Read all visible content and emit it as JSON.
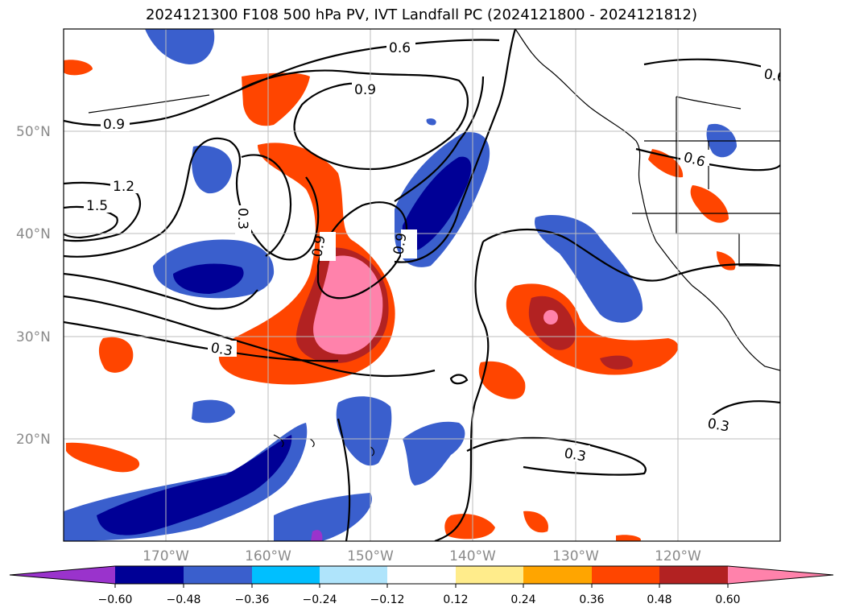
{
  "title": "2024121300 F108 500 hPa PV, IVT Landfall PC (2024121800 - 2024121812)",
  "lat_ticks": [
    "50°N",
    "40°N",
    "30°N",
    "20°N"
  ],
  "lon_ticks": [
    "170°W",
    "160°W",
    "150°W",
    "140°W",
    "130°W",
    "120°W"
  ],
  "contour_labels": [
    "0.6",
    "0.9",
    "0.9",
    "1.2",
    "1.5",
    "0.3",
    "0.9",
    "0.9",
    "0.3",
    "0.3",
    "0.3",
    "0.6",
    "0.6"
  ],
  "colorbar": {
    "colors": [
      "#9a33cc",
      "#000096",
      "#3a5fcd",
      "#00bfff",
      "#afe4fb",
      "#ffffff",
      "#ffec8b",
      "#ffa500",
      "#ff4500",
      "#b22222",
      "#ff82ab"
    ],
    "tick_labels": [
      "−0.60",
      "−0.48",
      "−0.36",
      "−0.24",
      "−0.12",
      "0.12",
      "0.24",
      "0.36",
      "0.48",
      "0.60"
    ]
  }
}
